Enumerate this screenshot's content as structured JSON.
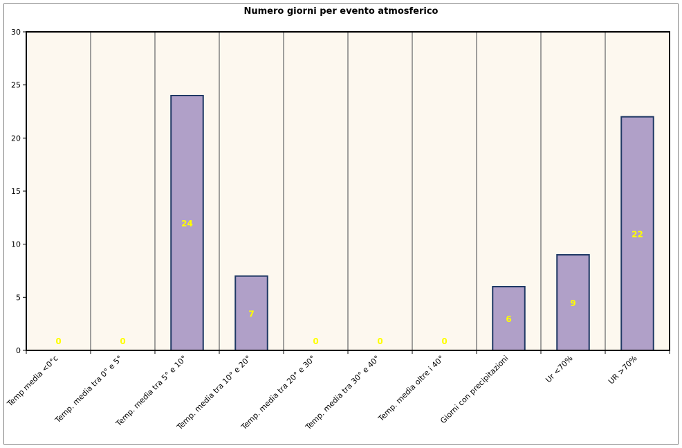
{
  "chart_data": {
    "type": "bar",
    "title": "Numero giorni per evento atmosferico",
    "xlabel": "",
    "ylabel": "",
    "categories": [
      "Temp media <0°c",
      "Temp. media tra 0° e 5°",
      "Temp. media tra 5° e 10°",
      "Temp. media tra 10° e 20°",
      "Temp. media tra 20° e 30°",
      "Temp. media tra 30° e 40°",
      "Temp. media oltre i 40°",
      "Giorni con precipitazioni",
      "Ur <70%",
      "UR >70%"
    ],
    "values": [
      0,
      0,
      24,
      7,
      0,
      0,
      0,
      6,
      9,
      22
    ],
    "ylim": [
      0,
      30
    ],
    "yticks": [
      0,
      5,
      10,
      15,
      20,
      25,
      30
    ],
    "grid": "vertical",
    "colors": {
      "bar_fill": "#b0a0c8",
      "bar_stroke": "#1f3864",
      "plot_background": "#fdf8ef",
      "gridline": "#808080",
      "data_label": "#ffff00"
    }
  }
}
